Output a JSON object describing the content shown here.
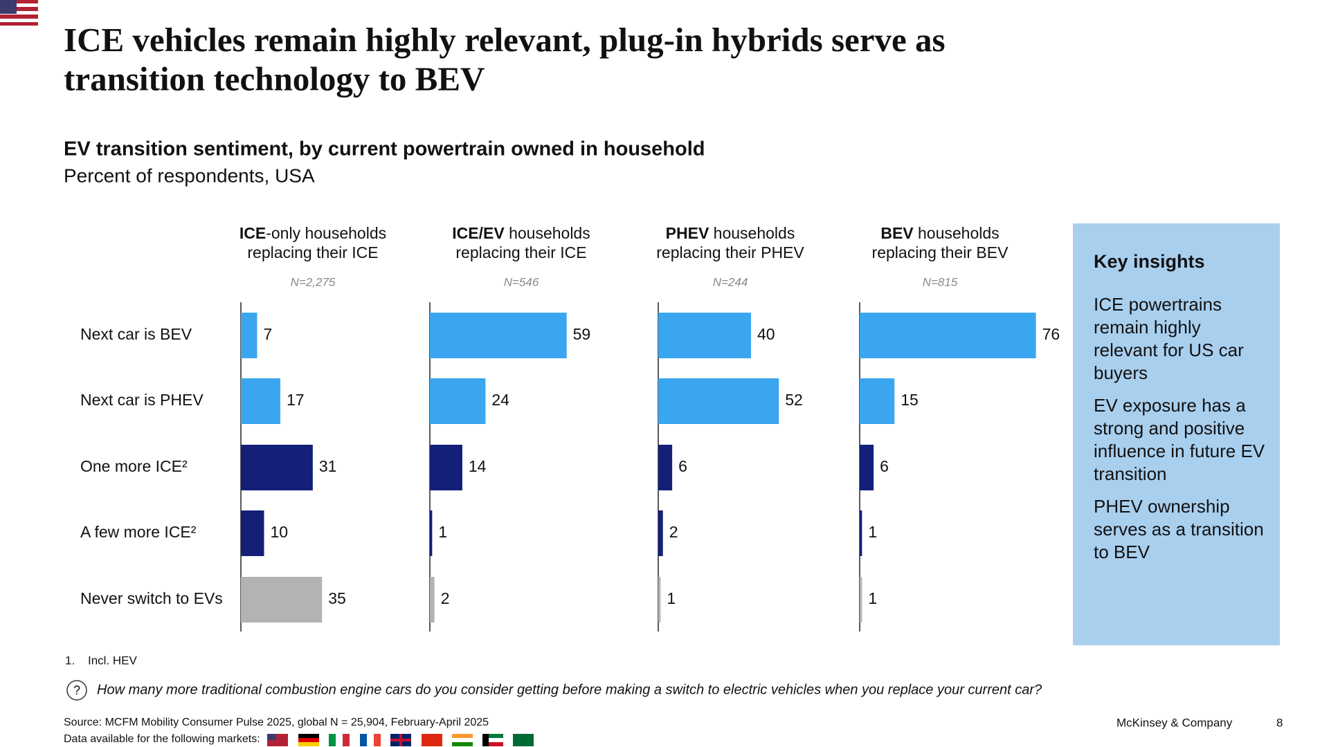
{
  "title": "ICE vehicles remain highly relevant, plug-in hybrids serve as transition technology to BEV",
  "subtitle": "EV transition sentiment, by current powertrain owned in household",
  "unit_note": "Percent of respondents, USA",
  "chart_data": [
    {
      "type": "bar",
      "title_bold": "ICE",
      "title_rest": "-only households",
      "title_line2": "replacing their ICE",
      "n_label": "N=2,275",
      "categories": [
        "Next car is BEV",
        "Next car is PHEV",
        "One more ICE²",
        "A few more ICE²",
        "Never switch to EVs"
      ],
      "colors": [
        "#3aa6f0",
        "#3aa6f0",
        "#141f78",
        "#141f78",
        "#b3b3b3"
      ],
      "values": [
        7,
        17,
        31,
        10,
        35
      ]
    },
    {
      "type": "bar",
      "title_bold": "ICE/EV",
      "title_rest": " households",
      "title_line2": "replacing their ICE",
      "n_label": "N=546",
      "colors": [
        "#3aa6f0",
        "#3aa6f0",
        "#141f78",
        "#141f78",
        "#b3b3b3"
      ],
      "values": [
        59,
        24,
        14,
        1,
        2
      ]
    },
    {
      "type": "bar",
      "title_bold": "PHEV",
      "title_rest": " households",
      "title_line2": "replacing their PHEV",
      "n_label": "N=244",
      "colors": [
        "#3aa6f0",
        "#3aa6f0",
        "#141f78",
        "#141f78",
        "#b3b3b3"
      ],
      "values": [
        40,
        52,
        6,
        2,
        1
      ]
    },
    {
      "type": "bar",
      "title_bold": "BEV",
      "title_rest": " households",
      "title_line2": "replacing their BEV",
      "n_label": "N=815",
      "colors": [
        "#3aa6f0",
        "#3aa6f0",
        "#141f78",
        "#141f78",
        "#b3b3b3"
      ],
      "values": [
        76,
        15,
        6,
        1,
        1
      ]
    }
  ],
  "insights": {
    "title": "Key insights",
    "items": [
      "ICE powertrains remain highly relevant for US car buyers",
      "EV exposure has a strong and positive influence in future EV transition",
      "PHEV ownership serves as a transition to BEV"
    ]
  },
  "footnote": {
    "number": "1.",
    "text": "Incl. HEV"
  },
  "question": "How many more traditional combustion engine cars do you consider getting before making a switch to electric vehicles when you replace your current car?",
  "source": "Source: MCFM Mobility Consumer Pulse 2025, global N = 25,904, February-April 2025",
  "markets": "Data available for the following markets:",
  "brand": "McKinsey & Company",
  "page": "8"
}
